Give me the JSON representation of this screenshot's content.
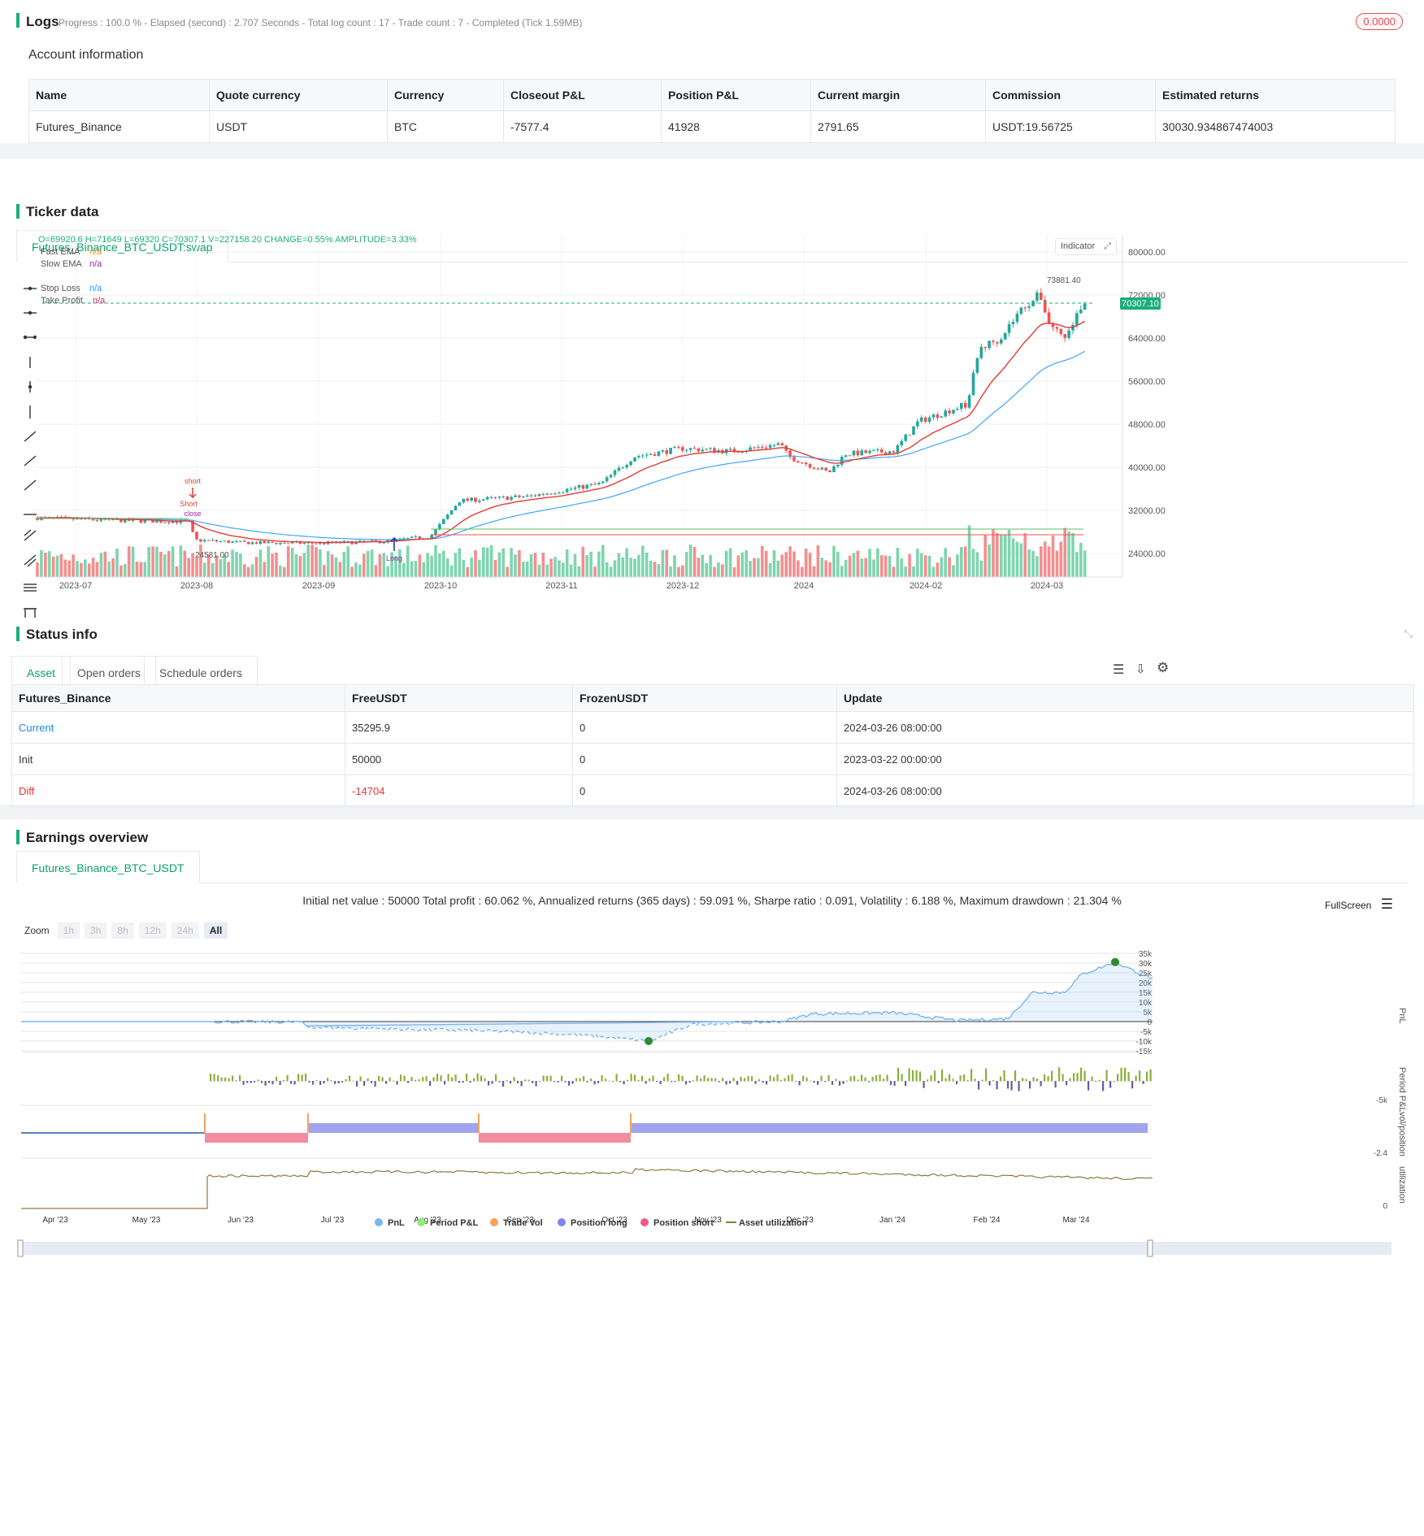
{
  "logs": {
    "title": "Logs",
    "progress": "Progress : 100.0 % - Elapsed (second) : 2.707  Seconds - Total log count : 17 - Trade count : 7 - Completed (Tick 1.59MB)",
    "badge": "0.0000"
  },
  "account": {
    "title": "Account information",
    "headers": [
      "Name",
      "Quote currency",
      "Currency",
      "Closeout P&L",
      "Position P&L",
      "Current margin",
      "Commission",
      "Estimated returns"
    ],
    "row": [
      "Futures_Binance",
      "USDT",
      "BTC",
      "-7577.4",
      "41928",
      "2791.65",
      "USDT:19.56725",
      "30030.934867474003"
    ]
  },
  "ticker": {
    "title": "Ticker data",
    "tab": "Futures_Binance_BTC_USDT:swap",
    "ohlc": "O=69920.6 H=71649 L=69320 C=70307.1 V=227158.20 CHANGE=0.55% AMPLITUDE=3.33%",
    "indicator_btn": "Indicator",
    "legend": [
      {
        "name": "Fast EMA",
        "value": "n/a",
        "color": "#f7931a"
      },
      {
        "name": "Slow EMA",
        "value": "n/a",
        "color": "#9c27b0"
      },
      {
        "name": "Stop Loss",
        "value": "n/a",
        "color": "#2196f3"
      },
      {
        "name": "Take Profit",
        "value": "n/a",
        "color": "#e91e63"
      }
    ],
    "price_label": "70307.10",
    "high_label": "73881.40",
    "low_label": "24581.00",
    "markers": {
      "short": "short",
      "short2": "Short",
      "close": "close",
      "long": "Long"
    },
    "y_ticks": [
      "80000.00",
      "72000.00",
      "64000.00",
      "56000.00",
      "48000.00",
      "40000.00",
      "32000.00",
      "24000.00"
    ],
    "x_ticks": [
      "2023-07",
      "2023-08",
      "2023-09",
      "2023-10",
      "2023-11",
      "2023-12",
      "2024",
      "2024-02",
      "2024-03"
    ]
  },
  "status": {
    "title": "Status info",
    "tabs": [
      "Asset",
      "Open orders",
      "Schedule orders"
    ],
    "headers": [
      "Futures_Binance",
      "FreeUSDT",
      "FrozenUSDT",
      "Update"
    ],
    "rows": [
      {
        "label": "Current",
        "free": "35295.9",
        "frozen": "0",
        "update": "2024-03-26 08:00:00"
      },
      {
        "label": "Init",
        "free": "50000",
        "frozen": "0",
        "update": "2023-03-22 00:00:00"
      },
      {
        "label": "Diff",
        "free": "-14704",
        "frozen": "0",
        "update": "2024-03-26 08:00:00"
      }
    ]
  },
  "earnings": {
    "title": "Earnings overview",
    "tab": "Futures_Binance_BTC_USDT",
    "summary": "Initial net value : 50000 Total profit : 60.062 %, Annualized returns (365 days) : 59.091 %, Sharpe ratio : 0.091, Volatility : 6.188 %, Maximum drawdown : 21.304 %",
    "fullscreen": "FullScreen",
    "zoom_label": "Zoom",
    "zoom_opts": [
      "1h",
      "3h",
      "8h",
      "12h",
      "24h",
      "All"
    ],
    "pnl_ticks": [
      "35k",
      "30k",
      "25k",
      "20k",
      "15k",
      "10k",
      "5k",
      "0",
      "-5k",
      "-10k",
      "-15k"
    ],
    "axis_names": [
      "PnL",
      "Period P&L",
      "vol/position",
      "utilization"
    ],
    "period_tick": "-5k",
    "pos_tick": "-2.4",
    "util_tick": "0",
    "x_ticks": [
      "Apr '23",
      "May '23",
      "Jun '23",
      "Jul '23",
      "Aug '23",
      "Sep '23",
      "Oct '23",
      "Nov '23",
      "Dec '23",
      "Jan '24",
      "Feb '24",
      "Mar '24"
    ],
    "nav_ticks": [
      "May '23",
      "Jul '23",
      "Sep '23",
      "Nov '23",
      "Jan '24",
      "Mar '24"
    ],
    "legend": [
      {
        "name": "PnL",
        "color": "#7cb5ec"
      },
      {
        "name": "Period P&L",
        "color": "#90ed7d"
      },
      {
        "name": "Trade Vol",
        "color": "#f7a35c"
      },
      {
        "name": "Position long",
        "color": "#8085e9"
      },
      {
        "name": "Position short",
        "color": "#f15c80"
      },
      {
        "name": "Asset utilization",
        "color": "#8d7a3d"
      }
    ]
  }
}
